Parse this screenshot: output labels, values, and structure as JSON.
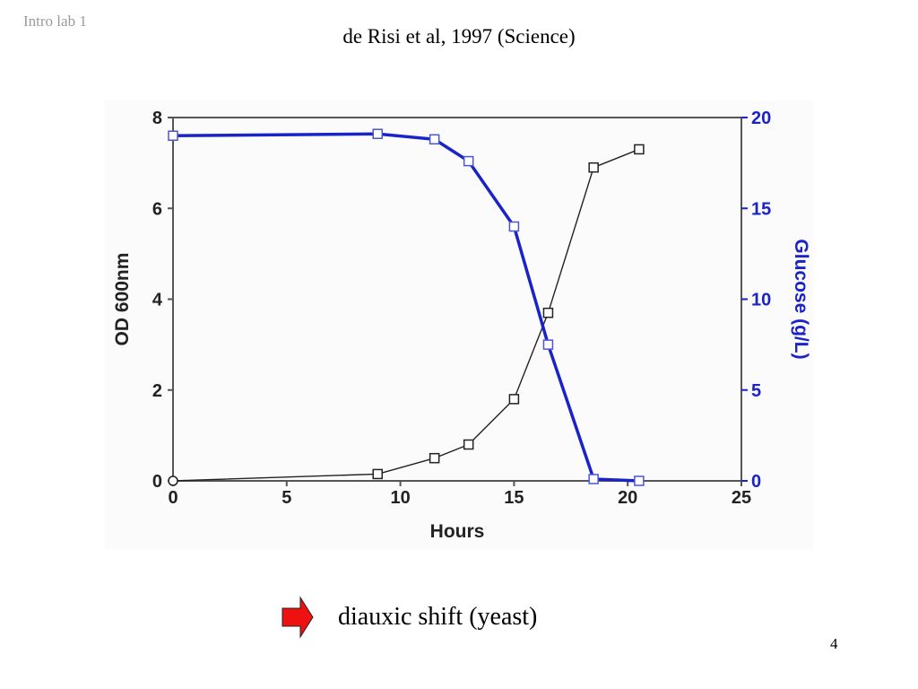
{
  "header": {
    "left_label": "Intro lab 1",
    "title": "de Risi et al, 1997 (Science)"
  },
  "chart_data": {
    "type": "line",
    "xlabel": "Hours",
    "ylabel": "OD 600nm",
    "y2label": "Glucose (g/L)",
    "xlim": [
      0,
      25
    ],
    "ylim": [
      0,
      8
    ],
    "y2lim": [
      0,
      20
    ],
    "xticks": [
      "0",
      "5",
      "10",
      "15",
      "20",
      "25"
    ],
    "yticks": [
      "0",
      "2",
      "4",
      "6",
      "8"
    ],
    "y2ticks": [
      "0",
      "5",
      "10",
      "15",
      "20"
    ],
    "grid": false,
    "series": [
      {
        "axis": "left",
        "color": "#222222",
        "marker": "square",
        "x": [
          0,
          9,
          11.5,
          13,
          15,
          16.5,
          18.5,
          20.5
        ],
        "y": [
          0,
          0.15,
          0.5,
          0.8,
          1.8,
          3.7,
          6.9,
          7.3
        ]
      },
      {
        "axis": "right",
        "color": "#1a23c8",
        "marker": "square",
        "x": [
          0,
          9,
          11.5,
          13,
          15,
          16.5,
          18.5,
          20.5
        ],
        "y": [
          19,
          19.1,
          18.8,
          17.6,
          14,
          7.5,
          0.1,
          0
        ]
      }
    ]
  },
  "caption": {
    "text": "diauxic shift (yeast)",
    "arrow_color": "#ee1111"
  },
  "footer": {
    "page_number": "4"
  }
}
